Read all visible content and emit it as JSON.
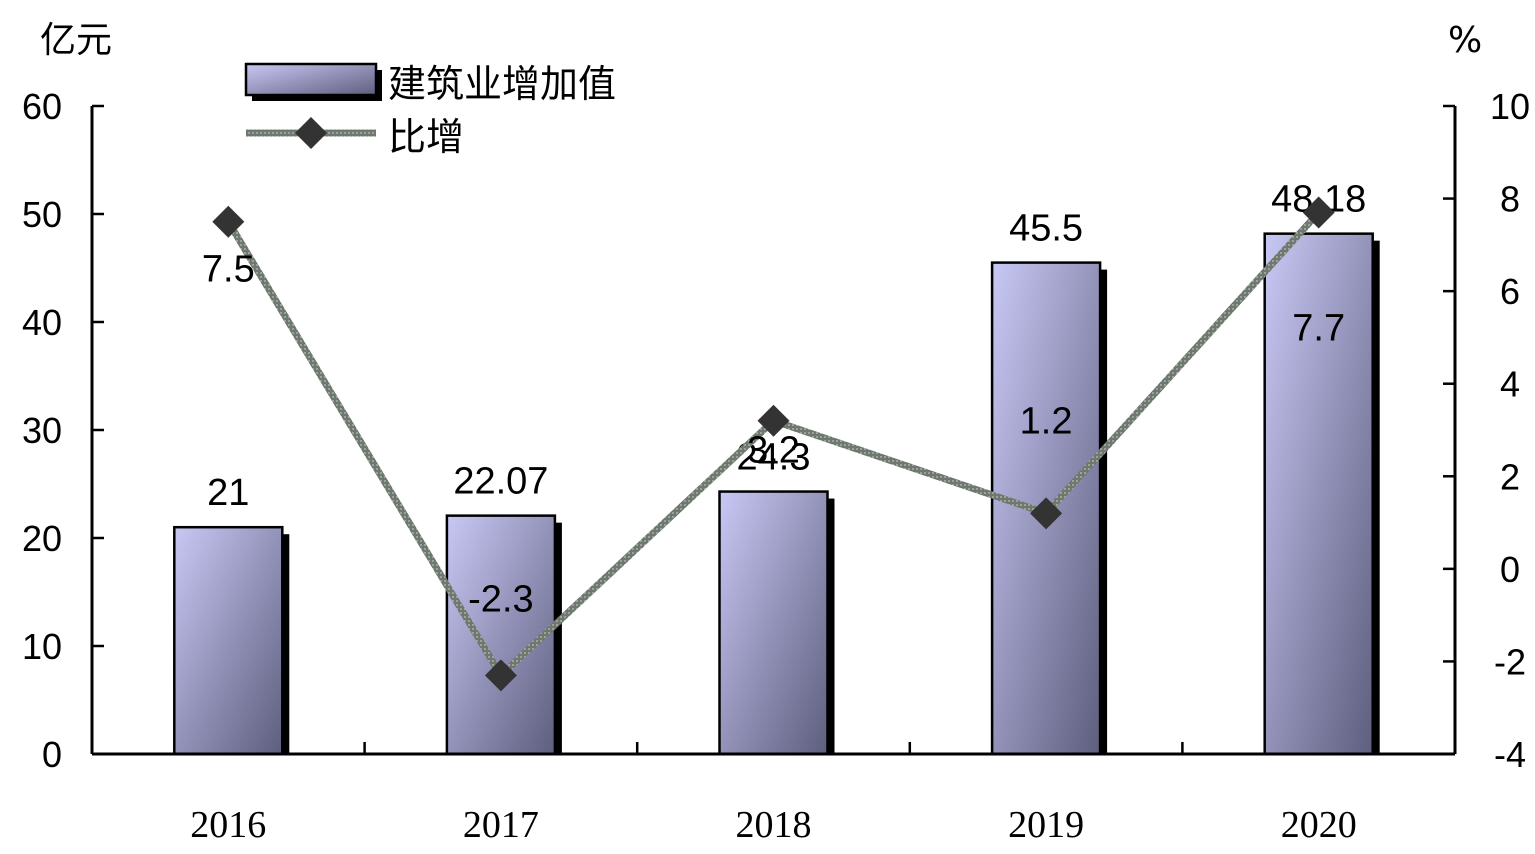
{
  "chart_data": {
    "type": "bar",
    "categories": [
      "2016",
      "2017",
      "2018",
      "2019",
      "2020"
    ],
    "series": [
      {
        "name": "建筑业增加值",
        "type": "bar",
        "axis": "left",
        "values": [
          21,
          22.07,
          24.3,
          45.5,
          48.18
        ],
        "labels": [
          "21",
          "22.07",
          "24.3",
          "45.5",
          "48.18"
        ]
      },
      {
        "name": "比增",
        "type": "line",
        "axis": "right",
        "values": [
          7.5,
          -2.3,
          3.2,
          1.2,
          7.7
        ],
        "labels": [
          "7.5",
          "-2.3",
          "3.2",
          "1.2",
          "7.7"
        ]
      }
    ],
    "left_axis": {
      "unit": "亿元",
      "ylim": [
        0,
        60
      ],
      "ticks": [
        "0",
        "10",
        "20",
        "30",
        "40",
        "50",
        "60"
      ]
    },
    "right_axis": {
      "unit": "%",
      "ylim": [
        -4,
        10
      ],
      "ticks": [
        "-4",
        "-2",
        "0",
        "2",
        "4",
        "6",
        "8",
        "10"
      ]
    },
    "grid": false,
    "legend_position": "top-left",
    "colors": {
      "bar_light": "#c8c8f5",
      "bar_dark": "#5e5e7e",
      "line": "#6e786e",
      "marker": "#333333"
    }
  }
}
